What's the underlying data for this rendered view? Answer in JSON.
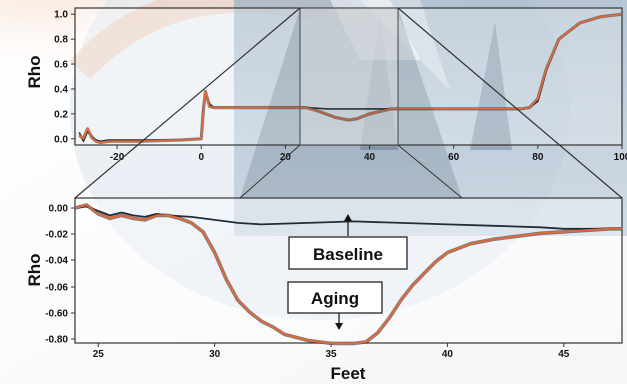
{
  "chart_data": [
    {
      "type": "line",
      "ylabel": "Rho",
      "xlabel": "",
      "xlim": [
        -30,
        100
      ],
      "ylim": [
        -0.05,
        1.05
      ],
      "x_ticks": [
        "-20",
        "0",
        "20",
        "40",
        "60",
        "80",
        "100"
      ],
      "y_ticks": [
        "1.0",
        "0.8",
        "0.6",
        "0.4",
        "0.2",
        "0.0"
      ],
      "series": [
        {
          "color": "#1f2d3a",
          "x": [
            -29,
            -28,
            -27,
            -26,
            -25,
            -24,
            -22,
            -15,
            -5,
            0,
            0.5,
            1,
            2,
            3,
            10,
            20,
            25,
            30,
            35,
            40,
            45,
            50,
            60,
            70,
            76,
            78,
            80,
            82,
            85,
            90,
            95,
            100
          ],
          "y": [
            0.05,
            -0.02,
            0.06,
            0.02,
            -0.01,
            -0.02,
            -0.01,
            -0.01,
            -0.01,
            0.0,
            0.25,
            0.36,
            0.28,
            0.25,
            0.25,
            0.25,
            0.25,
            0.24,
            0.24,
            0.24,
            0.24,
            0.24,
            0.24,
            0.24,
            0.24,
            0.25,
            0.3,
            0.55,
            0.8,
            0.93,
            0.98,
            1.0
          ]
        },
        {
          "color": "#e06a3c",
          "x": [
            -29,
            -28,
            -27,
            -26,
            -25,
            -24,
            -22,
            -15,
            -5,
            0,
            0.5,
            1,
            2,
            3,
            10,
            20,
            25,
            28,
            32,
            35,
            37,
            40,
            45,
            50,
            60,
            70,
            76,
            78,
            80,
            82,
            85,
            90,
            95,
            100
          ],
          "y": [
            0.03,
            0.0,
            0.08,
            0.01,
            -0.02,
            -0.03,
            -0.02,
            -0.02,
            -0.01,
            0.0,
            0.22,
            0.38,
            0.26,
            0.25,
            0.25,
            0.25,
            0.25,
            0.22,
            0.17,
            0.15,
            0.16,
            0.2,
            0.24,
            0.24,
            0.24,
            0.24,
            0.24,
            0.25,
            0.32,
            0.56,
            0.8,
            0.93,
            0.98,
            1.0
          ]
        }
      ]
    },
    {
      "type": "line",
      "ylabel": "Rho",
      "xlabel": "Feet",
      "xlim": [
        24,
        47.5
      ],
      "ylim": [
        -0.96,
        0.02
      ],
      "x_ticks": [
        "25",
        "30",
        "35",
        "40",
        "45"
      ],
      "y_ticks": [
        "0.00",
        "-0.02",
        "-0.04",
        "-0.06",
        "-0.60",
        "-0.80"
      ],
      "annotations": [
        {
          "text": "Baseline",
          "target": [
            35.6,
            -0.1
          ]
        },
        {
          "text": "Aging",
          "target": [
            35.2,
            -0.91
          ]
        }
      ],
      "series": [
        {
          "name": "Baseline",
          "color": "#1f2d3a",
          "x": [
            24,
            24.5,
            25,
            25.5,
            26,
            26.5,
            27,
            27.5,
            28,
            29,
            30,
            31,
            32,
            34,
            36,
            38,
            40,
            42,
            44,
            45,
            46,
            47,
            47.5
          ],
          "y": [
            0.0,
            0.01,
            -0.02,
            -0.05,
            -0.03,
            -0.05,
            -0.06,
            -0.04,
            -0.05,
            -0.06,
            -0.08,
            -0.1,
            -0.11,
            -0.1,
            -0.09,
            -0.1,
            -0.11,
            -0.12,
            -0.13,
            -0.14,
            -0.14,
            -0.14,
            -0.14
          ]
        },
        {
          "name": "Aging",
          "color": "#e06a3c",
          "x": [
            24,
            24.5,
            25,
            25.5,
            26,
            26.5,
            27,
            27.5,
            28,
            28.5,
            29,
            29.5,
            30,
            30.5,
            31,
            31.5,
            32,
            32.5,
            33,
            34,
            35,
            36,
            36.5,
            37,
            37.5,
            38,
            38.5,
            39,
            39.5,
            40,
            41,
            42,
            43,
            44,
            45,
            46,
            47,
            47.5
          ],
          "y": [
            0.0,
            0.02,
            -0.04,
            -0.07,
            -0.05,
            -0.07,
            -0.08,
            -0.05,
            -0.05,
            -0.07,
            -0.1,
            -0.16,
            -0.3,
            -0.48,
            -0.62,
            -0.7,
            -0.76,
            -0.8,
            -0.85,
            -0.89,
            -0.91,
            -0.91,
            -0.9,
            -0.84,
            -0.74,
            -0.62,
            -0.52,
            -0.44,
            -0.36,
            -0.3,
            -0.24,
            -0.21,
            -0.19,
            -0.17,
            -0.16,
            -0.15,
            -0.14,
            -0.14
          ]
        }
      ]
    }
  ]
}
